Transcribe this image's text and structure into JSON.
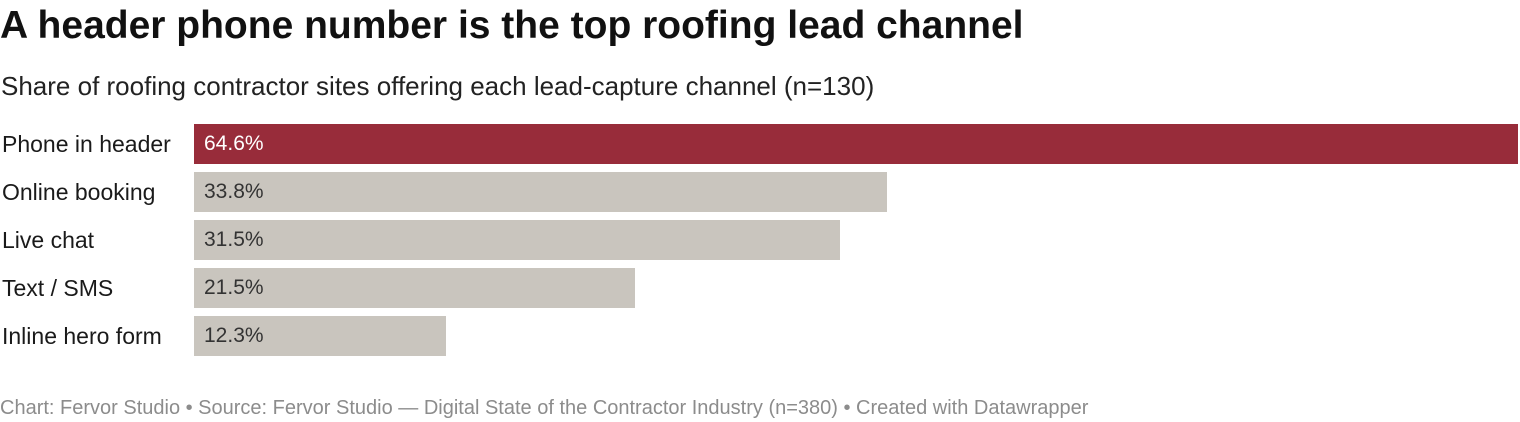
{
  "colors": {
    "highlight": "#982c3a",
    "default_bar": "#c9c5be",
    "highlight_text": "#ffffff",
    "default_text": "#333333",
    "footer_text": "#8c8c8c"
  },
  "chart_data": {
    "type": "bar",
    "orientation": "horizontal",
    "title": "A header phone number is the top roofing lead channel",
    "subtitle": "Share of roofing contractor sites offering each lead-capture channel (n=130)",
    "categories": [
      "Phone in header",
      "Online booking",
      "Live chat",
      "Text / SMS",
      "Inline hero form"
    ],
    "values": [
      64.6,
      33.8,
      31.5,
      21.5,
      12.3
    ],
    "value_labels": [
      "64.6%",
      "33.8%",
      "31.5%",
      "21.5%",
      "12.3%"
    ],
    "highlighted": [
      "Phone in header"
    ],
    "unit": "%",
    "xlim": [
      0,
      64.6
    ],
    "grid": false,
    "legend": "none"
  },
  "footer": {
    "text": "Chart: Fervor Studio • Source: Fervor Studio — Digital State of the Contractor Industry (n=380) • Created with Datawrapper"
  }
}
